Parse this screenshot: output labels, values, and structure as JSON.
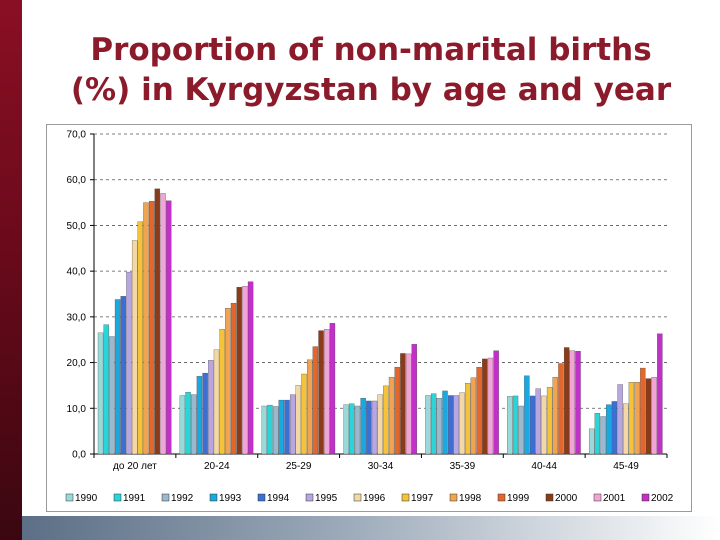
{
  "slide": {
    "title_line1": "Proportion of non-marital births",
    "title_line2": "(%) in Kyrgyzstan by age and year"
  },
  "chart_data": {
    "type": "bar",
    "title": "Proportion of non-marital births (%) in Kyrgyzstan by age and year",
    "xlabel": "",
    "ylabel": "",
    "ylim": [
      0,
      70
    ],
    "yticks": [
      "0,0",
      "10,0",
      "20,0",
      "30,0",
      "40,0",
      "50,0",
      "60,0",
      "70,0"
    ],
    "grid": true,
    "legend_position": "bottom",
    "categories": [
      "до 20 лет",
      "20-24",
      "25-29",
      "30-34",
      "35-39",
      "40-44",
      "45-49"
    ],
    "series": [
      {
        "name": "1990",
        "color": "#9ad9d9",
        "values": [
          26.5,
          12.8,
          10.5,
          10.8,
          12.8,
          12.6,
          5.5
        ]
      },
      {
        "name": "1991",
        "color": "#2ad4d8",
        "values": [
          28.3,
          13.5,
          10.7,
          11.0,
          13.2,
          12.7,
          8.9
        ]
      },
      {
        "name": "1992",
        "color": "#9ab8d0",
        "values": [
          25.7,
          13.0,
          10.4,
          10.5,
          12.2,
          10.5,
          8.2
        ]
      },
      {
        "name": "1993",
        "color": "#1ba7df",
        "values": [
          33.8,
          17.0,
          11.8,
          12.2,
          13.8,
          17.1,
          10.8
        ]
      },
      {
        "name": "1994",
        "color": "#3c6fd1",
        "values": [
          34.5,
          17.7,
          11.8,
          11.6,
          12.8,
          12.7,
          11.5
        ]
      },
      {
        "name": "1995",
        "color": "#b8a6e0",
        "values": [
          39.8,
          20.5,
          13.0,
          11.6,
          12.8,
          14.3,
          15.2
        ]
      },
      {
        "name": "1996",
        "color": "#f2d8a6",
        "values": [
          46.7,
          22.8,
          15.0,
          13.0,
          13.4,
          12.7,
          11.0
        ]
      },
      {
        "name": "1997",
        "color": "#f4c33a",
        "values": [
          50.8,
          27.3,
          17.5,
          14.9,
          15.5,
          14.6,
          15.7
        ]
      },
      {
        "name": "1998",
        "color": "#f2a34f",
        "values": [
          55.0,
          31.9,
          20.6,
          16.8,
          16.7,
          16.8,
          15.7
        ]
      },
      {
        "name": "1999",
        "color": "#e3672a",
        "values": [
          55.3,
          33.0,
          23.5,
          19.0,
          19.0,
          19.8,
          18.8
        ]
      },
      {
        "name": "2000",
        "color": "#8a3c1a",
        "values": [
          58.0,
          36.5,
          27.0,
          22.0,
          20.8,
          23.3,
          16.5
        ]
      },
      {
        "name": "2001",
        "color": "#f0a5d6",
        "values": [
          57.0,
          36.7,
          27.3,
          21.9,
          21.0,
          22.6,
          16.8
        ]
      },
      {
        "name": "2002",
        "color": "#c130c9",
        "values": [
          55.4,
          37.7,
          28.6,
          24.0,
          22.6,
          22.5,
          26.3
        ]
      }
    ]
  }
}
